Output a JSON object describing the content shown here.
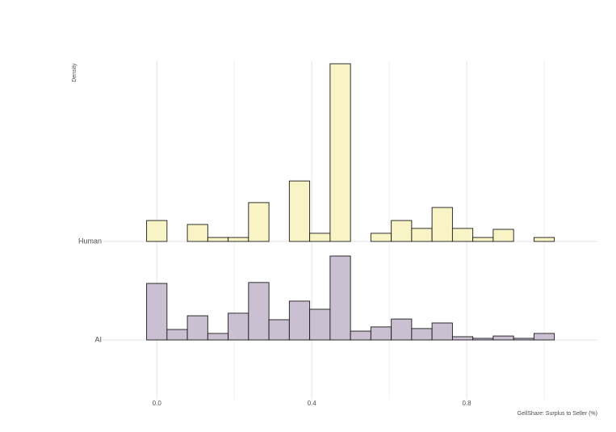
{
  "chart_data": {
    "type": "ridgeline_histogram",
    "y_label": "Density",
    "x_label": "GellShare: Surplus to Seller (%)",
    "bins": [
      -0.0789,
      -0.0263,
      0.0263,
      0.0789,
      0.1316,
      0.1842,
      0.2368,
      0.2895,
      0.3421,
      0.3947,
      0.4474,
      0.5,
      0.5526,
      0.6053,
      0.6579,
      0.7105,
      0.7632,
      0.8158,
      0.8684,
      0.9211,
      0.9737,
      1.0263,
      1.0789
    ],
    "series": [
      {
        "name": "Human",
        "color": "#f9f4c6",
        "values": [
          0,
          0.9,
          0,
          0.73,
          0.17,
          0.17,
          1.67,
          0,
          2.6,
          0.35,
          7.64,
          0,
          0.35,
          0.9,
          0.56,
          1.46,
          0.56,
          0.17,
          0.52,
          0,
          0.17,
          0
        ]
      },
      {
        "name": "AI",
        "color": "#cbbfd2",
        "values": [
          0,
          2.43,
          0.45,
          1.04,
          0.28,
          1.15,
          2.47,
          0.87,
          1.67,
          1.32,
          3.61,
          0.38,
          0.56,
          0.9,
          0.49,
          0.73,
          0.14,
          0.07,
          0.17,
          0.07,
          0.28,
          0
        ]
      }
    ],
    "xlim": [
      -0.138,
      1.1375
    ],
    "xticks": [
      {
        "value": 0,
        "label": "0.0"
      },
      0.4,
      0.8
    ],
    "xgrid_minor": [
      0.2,
      0.6,
      1.0
    ],
    "grid": true
  }
}
